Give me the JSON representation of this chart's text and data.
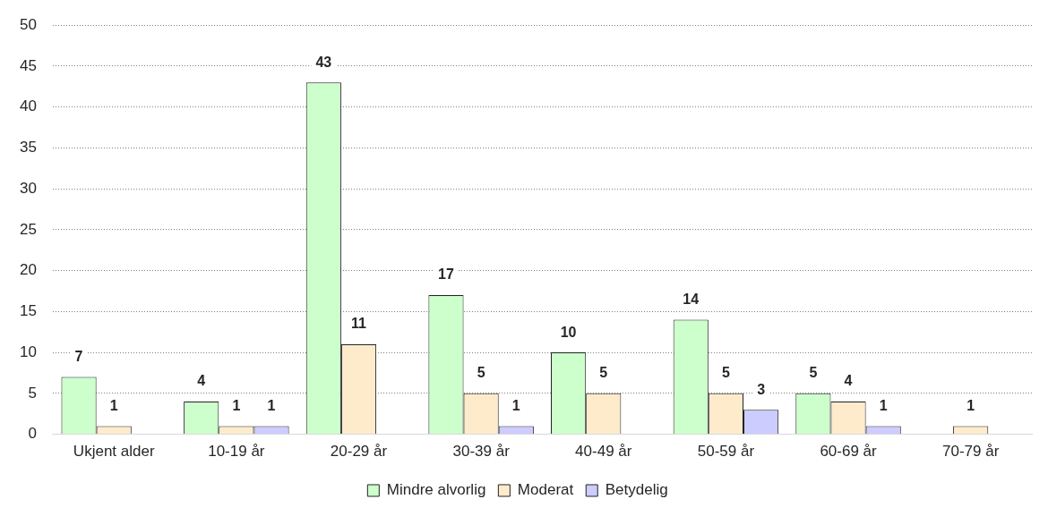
{
  "chart_data": {
    "type": "bar",
    "categories": [
      "Ukjent alder",
      "10-19 år",
      "20-29 år",
      "30-39 år",
      "40-49 år",
      "50-59 år",
      "60-69 år",
      "70-79 år"
    ],
    "series": [
      {
        "name": "Mindre alvorlig",
        "color": "#ccffcc",
        "values": [
          7,
          4,
          43,
          17,
          10,
          14,
          5,
          null
        ]
      },
      {
        "name": "Moderat",
        "color": "#fdebcc",
        "values": [
          1,
          1,
          11,
          5,
          5,
          5,
          4,
          1
        ]
      },
      {
        "name": "Betydelig",
        "color": "#ccccff",
        "values": [
          null,
          1,
          null,
          1,
          null,
          3,
          1,
          null
        ]
      }
    ],
    "ylim": [
      0,
      50
    ],
    "yticks": [
      0,
      5,
      10,
      15,
      20,
      25,
      30,
      35,
      40,
      45,
      50
    ],
    "grid": "y",
    "legend": "bottom",
    "data_labels": true
  }
}
